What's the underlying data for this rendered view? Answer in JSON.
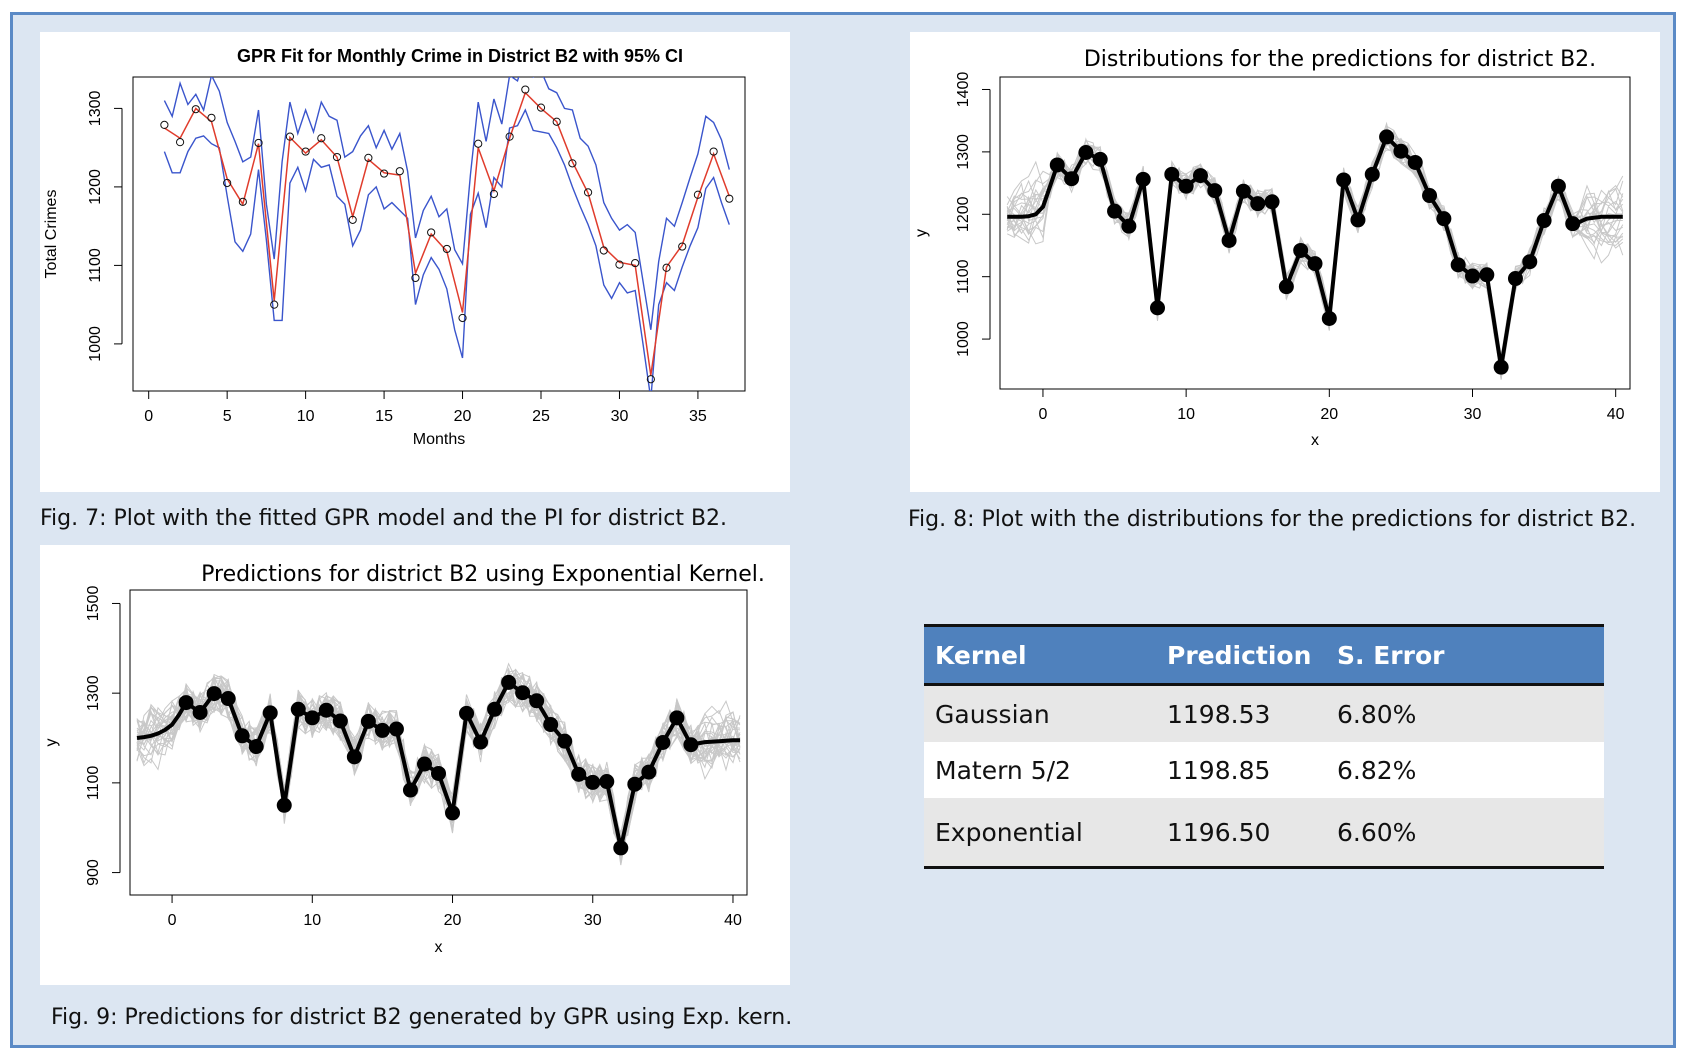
{
  "chart_data": [
    {
      "type": "line",
      "title": "GPR Fit for Monthly Crime in District B2 with 95% CI",
      "xlabel": "Months",
      "ylabel": "Total Crimes",
      "xlim": [
        -1,
        38
      ],
      "ylim": [
        940,
        1340
      ],
      "xticks": [
        0,
        5,
        10,
        15,
        20,
        25,
        30,
        35
      ],
      "yticks": [
        1000,
        1100,
        1200,
        1300
      ],
      "grid": false,
      "series": [
        {
          "kind": "observed",
          "x": [
            1,
            2,
            3,
            4,
            5,
            6,
            7,
            8,
            9,
            10,
            11,
            12,
            13,
            14,
            15,
            16,
            17,
            18,
            19,
            20,
            21,
            22,
            23,
            24,
            25,
            26,
            27,
            28,
            29,
            30,
            31,
            32,
            33,
            34,
            35,
            36,
            37
          ],
          "values": [
            1279,
            1257,
            1299,
            1288,
            1205,
            1181,
            1256,
            1050,
            1264,
            1245,
            1262,
            1238,
            1158,
            1237,
            1217,
            1220,
            1084,
            1142,
            1121,
            1033,
            1255,
            1191,
            1264,
            1324,
            1301,
            1283,
            1230,
            1193,
            1119,
            1101,
            1103,
            955,
            1097,
            1124,
            1190,
            1245,
            1185
          ]
        },
        {
          "kind": "fit",
          "x": [
            1,
            2,
            3,
            4,
            5,
            6,
            7,
            8,
            9,
            10,
            11,
            12,
            13,
            14,
            15,
            16,
            17,
            18,
            19,
            20,
            21,
            22,
            23,
            24,
            25,
            26,
            27,
            28,
            29,
            30,
            31,
            32,
            33,
            34,
            35,
            36,
            37
          ],
          "values": [
            1275,
            1262,
            1300,
            1283,
            1210,
            1178,
            1255,
            1055,
            1263,
            1243,
            1260,
            1238,
            1162,
            1235,
            1218,
            1215,
            1090,
            1140,
            1118,
            1040,
            1250,
            1195,
            1262,
            1320,
            1300,
            1283,
            1232,
            1192,
            1123,
            1104,
            1100,
            960,
            1098,
            1126,
            1187,
            1242,
            1188
          ]
        },
        {
          "kind": "upper",
          "x": [
            1,
            1.5,
            2,
            2.5,
            3,
            3.5,
            4,
            4.5,
            5,
            5.5,
            6,
            6.5,
            7,
            7.5,
            8,
            8.5,
            9,
            9.5,
            10,
            10.5,
            11,
            11.5,
            12,
            12.5,
            13,
            13.5,
            14,
            14.5,
            15,
            15.5,
            16,
            16.5,
            17,
            17.5,
            18,
            18.5,
            19,
            19.5,
            20,
            20.5,
            21,
            21.5,
            22,
            22.5,
            23,
            23.5,
            24,
            24.5,
            25,
            25.5,
            26,
            26.5,
            27,
            27.5,
            28,
            28.5,
            29,
            29.5,
            30,
            30.5,
            31,
            31.5,
            32,
            32.5,
            33,
            33.5,
            34,
            34.5,
            35,
            35.5,
            36,
            36.5,
            37
          ],
          "values": [
            1310,
            1290,
            1332,
            1305,
            1318,
            1298,
            1342,
            1322,
            1282,
            1258,
            1232,
            1238,
            1298,
            1178,
            1108,
            1232,
            1308,
            1268,
            1298,
            1270,
            1308,
            1290,
            1285,
            1238,
            1245,
            1265,
            1278,
            1250,
            1272,
            1248,
            1268,
            1220,
            1135,
            1170,
            1188,
            1162,
            1172,
            1120,
            1102,
            1215,
            1308,
            1258,
            1312,
            1280,
            1342,
            1335,
            1368,
            1340,
            1348,
            1325,
            1320,
            1300,
            1298,
            1262,
            1252,
            1228,
            1180,
            1160,
            1145,
            1152,
            1142,
            1080,
            1018,
            1105,
            1160,
            1150,
            1180,
            1212,
            1242,
            1290,
            1282,
            1260,
            1222
          ]
        },
        {
          "kind": "lower",
          "x": [
            1,
            1.5,
            2,
            2.5,
            3,
            3.5,
            4,
            4.5,
            5,
            5.5,
            6,
            6.5,
            7,
            7.5,
            8,
            8.5,
            9,
            9.5,
            10,
            10.5,
            11,
            11.5,
            12,
            12.5,
            13,
            13.5,
            14,
            14.5,
            15,
            15.5,
            16,
            16.5,
            17,
            17.5,
            18,
            18.5,
            19,
            19.5,
            20,
            20.5,
            21,
            21.5,
            22,
            22.5,
            23,
            23.5,
            24,
            24.5,
            25,
            25.5,
            26,
            26.5,
            27,
            27.5,
            28,
            28.5,
            29,
            29.5,
            30,
            30.5,
            31,
            31.5,
            32,
            32.5,
            33,
            33.5,
            34,
            34.5,
            35,
            35.5,
            36,
            36.5,
            37
          ],
          "values": [
            1245,
            1218,
            1218,
            1245,
            1262,
            1265,
            1255,
            1250,
            1188,
            1130,
            1118,
            1140,
            1222,
            1132,
            1030,
            1030,
            1205,
            1225,
            1195,
            1235,
            1225,
            1228,
            1188,
            1178,
            1125,
            1145,
            1190,
            1200,
            1172,
            1180,
            1170,
            1160,
            1050,
            1088,
            1110,
            1095,
            1070,
            1018,
            982,
            1165,
            1192,
            1148,
            1212,
            1200,
            1275,
            1278,
            1298,
            1272,
            1270,
            1268,
            1250,
            1228,
            1200,
            1175,
            1152,
            1125,
            1075,
            1058,
            1078,
            1065,
            1068,
            1000,
            930,
            1050,
            1078,
            1068,
            1098,
            1125,
            1148,
            1198,
            1212,
            1180,
            1152
          ]
        }
      ],
      "colors": {
        "observed": "#111111",
        "fit": "#e03c2c",
        "band": "#3a55cc"
      }
    },
    {
      "type": "line",
      "title": "Distributions for the predictions for district B2.",
      "xlabel": "x",
      "ylabel": "y",
      "xlim": [
        -3,
        41
      ],
      "ylim": [
        920,
        1420
      ],
      "xticks": [
        0,
        10,
        20,
        30,
        40
      ],
      "yticks": [
        1000,
        1100,
        1200,
        1300,
        1400
      ],
      "grid": false,
      "series": [
        {
          "kind": "mean",
          "x": [
            -2.5,
            -2,
            -1.5,
            -1,
            -0.5,
            0,
            0.5,
            1,
            2,
            3,
            4,
            5,
            6,
            7,
            8,
            9,
            10,
            11,
            12,
            13,
            14,
            15,
            16,
            17,
            18,
            19,
            20,
            21,
            22,
            23,
            24,
            25,
            26,
            27,
            28,
            29,
            30,
            31,
            32,
            33,
            34,
            35,
            36,
            37,
            37.5,
            38,
            39,
            40,
            40.5
          ],
          "values": [
            1196,
            1196,
            1196,
            1197,
            1200,
            1212,
            1245,
            1279,
            1257,
            1299,
            1288,
            1205,
            1181,
            1256,
            1050,
            1264,
            1245,
            1262,
            1238,
            1158,
            1237,
            1217,
            1220,
            1084,
            1142,
            1121,
            1033,
            1255,
            1191,
            1264,
            1324,
            1301,
            1283,
            1230,
            1193,
            1119,
            1101,
            1103,
            955,
            1097,
            1124,
            1190,
            1245,
            1185,
            1188,
            1193,
            1196,
            1196,
            1196
          ]
        },
        {
          "kind": "observed",
          "x": [
            1,
            2,
            3,
            4,
            5,
            6,
            7,
            8,
            9,
            10,
            11,
            12,
            13,
            14,
            15,
            16,
            17,
            18,
            19,
            20,
            21,
            22,
            23,
            24,
            25,
            26,
            27,
            28,
            29,
            30,
            31,
            32,
            33,
            34,
            35,
            36,
            37
          ],
          "values": [
            1279,
            1257,
            1299,
            1288,
            1205,
            1181,
            1256,
            1050,
            1264,
            1245,
            1262,
            1238,
            1158,
            1237,
            1217,
            1220,
            1084,
            1142,
            1121,
            1033,
            1255,
            1191,
            1264,
            1324,
            1301,
            1283,
            1230,
            1193,
            1119,
            1101,
            1103,
            955,
            1097,
            1124,
            1190,
            1245,
            1185
          ]
        }
      ],
      "colors": {
        "samples": "#c8c8c8",
        "mean": "#000000"
      }
    },
    {
      "type": "line",
      "title": "Predictions for district B2 using Exponential Kernel.",
      "xlabel": "x",
      "ylabel": "y",
      "xlim": [
        -3,
        41
      ],
      "ylim": [
        850,
        1530
      ],
      "xticks": [
        0,
        10,
        20,
        30,
        40
      ],
      "yticks": [
        900,
        1100,
        1300,
        1500
      ],
      "grid": false,
      "series": [
        {
          "kind": "mean",
          "x": [
            -2.5,
            -2,
            -1.5,
            -1,
            -0.5,
            0,
            0.5,
            1,
            2,
            3,
            4,
            5,
            6,
            7,
            8,
            9,
            10,
            11,
            12,
            13,
            14,
            15,
            16,
            17,
            18,
            19,
            20,
            21,
            22,
            23,
            24,
            25,
            26,
            27,
            28,
            29,
            30,
            31,
            32,
            33,
            34,
            35,
            36,
            37,
            37.5,
            38,
            39,
            40,
            40.5
          ],
          "values": [
            1200,
            1202,
            1205,
            1210,
            1218,
            1230,
            1252,
            1279,
            1257,
            1299,
            1288,
            1205,
            1181,
            1256,
            1050,
            1264,
            1245,
            1262,
            1238,
            1158,
            1237,
            1217,
            1220,
            1084,
            1142,
            1121,
            1033,
            1255,
            1191,
            1264,
            1324,
            1301,
            1283,
            1230,
            1193,
            1119,
            1101,
            1103,
            955,
            1097,
            1124,
            1190,
            1245,
            1185,
            1188,
            1191,
            1193,
            1195,
            1195
          ]
        },
        {
          "kind": "observed",
          "x": [
            1,
            2,
            3,
            4,
            5,
            6,
            7,
            8,
            9,
            10,
            11,
            12,
            13,
            14,
            15,
            16,
            17,
            18,
            19,
            20,
            21,
            22,
            23,
            24,
            25,
            26,
            27,
            28,
            29,
            30,
            31,
            32,
            33,
            34,
            35,
            36,
            37
          ],
          "values": [
            1279,
            1257,
            1299,
            1288,
            1205,
            1181,
            1256,
            1050,
            1264,
            1245,
            1262,
            1238,
            1158,
            1237,
            1217,
            1220,
            1084,
            1142,
            1121,
            1033,
            1255,
            1191,
            1264,
            1324,
            1301,
            1283,
            1230,
            1193,
            1119,
            1101,
            1103,
            955,
            1097,
            1124,
            1190,
            1245,
            1185
          ]
        }
      ],
      "colors": {
        "samples": "#c8c8c8",
        "mean": "#000000"
      }
    }
  ],
  "captions": {
    "fig7": "Fig. 7: Plot with the fitted GPR model and the PI for district B2.",
    "fig8": "Fig. 8: Plot with the distributions for the predictions for district B2.",
    "fig9": "Fig. 9: Predictions for district B2 generated by GPR using Exp. kern."
  },
  "table": {
    "headers": [
      "Kernel",
      "Prediction",
      "S. Error"
    ],
    "rows": [
      [
        "Gaussian",
        "1198.53",
        "6.80%"
      ],
      [
        "Matern 5/2",
        "1198.85",
        "6.82%"
      ],
      [
        "Exponential",
        "1196.50",
        "6.60%"
      ]
    ],
    "colors": {
      "header": "#4f81bd",
      "band": "#e7e7e7"
    }
  }
}
